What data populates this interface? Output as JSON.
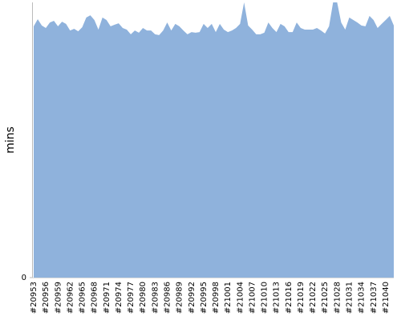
{
  "chart_data": {
    "type": "area",
    "y_label": "mins",
    "color": "#8fb2dc",
    "ylim": [
      0,
      100
    ],
    "yticks": [
      0
    ],
    "categories": [
      "#20953",
      null,
      null,
      "#20956",
      null,
      null,
      "#20959",
      null,
      null,
      "#20962",
      null,
      null,
      "#20965",
      null,
      null,
      "#20968",
      null,
      null,
      "#20971",
      null,
      null,
      "#20974",
      null,
      null,
      "#20977",
      null,
      null,
      "#20980",
      null,
      null,
      "#20983",
      null,
      null,
      "#20986",
      null,
      null,
      "#20989",
      null,
      null,
      "#20992",
      null,
      null,
      "#20995",
      null,
      null,
      "#20998",
      null,
      null,
      "#21001",
      null,
      null,
      "#21004",
      null,
      null,
      "#21007",
      null,
      null,
      "#21010",
      null,
      null,
      "#21013",
      null,
      null,
      "#21016",
      null,
      null,
      "#21019",
      null,
      null,
      "#21022",
      null,
      null,
      "#21025",
      null,
      null,
      "#21028",
      null,
      null,
      "#21031",
      null,
      null,
      "#21034",
      null,
      null,
      "#21037",
      null,
      null,
      "#21040",
      null,
      null
    ],
    "values": [
      91.3,
      93.9,
      91.6,
      90.7,
      92.7,
      93.3,
      91.3,
      93.0,
      92.2,
      89.8,
      90.4,
      89.5,
      91.0,
      94.5,
      95.3,
      93.6,
      90.1,
      94.5,
      93.6,
      91.3,
      91.9,
      92.4,
      90.7,
      90.1,
      88.4,
      89.8,
      89.0,
      90.7,
      89.8,
      89.8,
      88.4,
      88.1,
      89.8,
      92.7,
      89.8,
      92.2,
      91.3,
      89.8,
      88.4,
      89.2,
      89.0,
      89.2,
      92.2,
      90.7,
      92.2,
      89.2,
      92.2,
      90.1,
      89.2,
      89.8,
      90.7,
      92.2,
      100,
      91.6,
      90.1,
      88.4,
      88.4,
      89.0,
      92.7,
      90.7,
      89.2,
      92.2,
      91.3,
      89.2,
      89.2,
      92.7,
      90.7,
      90.1,
      90.1,
      90.1,
      90.7,
      89.8,
      88.7,
      91.3,
      100,
      100,
      92.7,
      90.1,
      94.5,
      93.6,
      92.7,
      91.6,
      91.3,
      95.1,
      93.6,
      90.7,
      92.2,
      93.6,
      95.1,
      91.6
    ]
  }
}
